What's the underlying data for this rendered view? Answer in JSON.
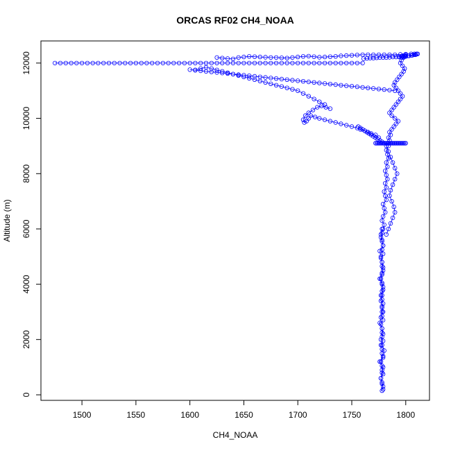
{
  "chart_data": {
    "type": "scatter",
    "title": "ORCAS RF02 CH4_NOAA",
    "xlabel": "CH4_NOAA",
    "ylabel": "Altitude (m)",
    "xlim": [
      1462,
      1822
    ],
    "ylim": [
      -200,
      12800
    ],
    "xticks": [
      1500,
      1550,
      1600,
      1650,
      1700,
      1750,
      1800
    ],
    "yticks": [
      0,
      2000,
      4000,
      6000,
      8000,
      10000,
      12000
    ],
    "grid": false,
    "marker": "open-circle",
    "line": true,
    "color": "#0000ff",
    "series": [
      {
        "x": [
          1778,
          1779,
          1778,
          1777,
          1779,
          1778,
          1778,
          1777,
          1779,
          1778,
          1778,
          1777,
          1779,
          1778,
          1778,
          1778,
          1777,
          1779,
          1778,
          1778,
          1778,
          1779,
          1778,
          1777,
          1778,
          1779,
          1778,
          1777,
          1778,
          1779,
          1778,
          1778,
          1777,
          1779,
          1778,
          1779,
          1778,
          1777,
          1778,
          1779,
          1780,
          1778,
          1779,
          1781,
          1780,
          1779,
          1782,
          1781,
          1780,
          1782,
          1781,
          1783,
          1782,
          1781,
          1783,
          1782,
          1784,
          1783,
          1782,
          1784,
          1783,
          1785,
          1784,
          1786,
          1785,
          1787,
          1789,
          1791,
          1793,
          1790,
          1787,
          1785,
          1787,
          1789,
          1791,
          1793,
          1795,
          1797,
          1795,
          1793,
          1791,
          1789,
          1790,
          1792,
          1794,
          1796,
          1798,
          1799,
          1797,
          1795,
          1796,
          1798,
          1799,
          1800,
          1799,
          1797,
          1796,
          1794,
          1796,
          1798,
          1800,
          1802,
          1805,
          1808,
          1810,
          1811,
          1809,
          1806,
          1803,
          1800,
          1797,
          1794,
          1791,
          1788,
          1785,
          1782,
          1779,
          1776,
          1773,
          1770,
          1767,
          1764,
          1761
        ],
        "y": [
          150,
          300,
          450,
          600,
          750,
          900,
          1050,
          1200,
          1350,
          1500,
          1650,
          1800,
          1950,
          2100,
          2250,
          2400,
          2550,
          2700,
          2850,
          3000,
          3150,
          3300,
          3450,
          3600,
          3750,
          3900,
          4050,
          4200,
          4350,
          4500,
          4650,
          4800,
          4950,
          5100,
          5250,
          5400,
          5550,
          5700,
          5850,
          6000,
          6150,
          6300,
          6450,
          6600,
          6750,
          6900,
          7050,
          7200,
          7350,
          7500,
          7650,
          7800,
          7950,
          8100,
          8250,
          8400,
          8550,
          8700,
          8850,
          9000,
          9100,
          9200,
          9300,
          9400,
          9500,
          9600,
          9700,
          9800,
          9900,
          10000,
          10100,
          10200,
          10300,
          10400,
          10500,
          10600,
          10700,
          10800,
          10900,
          11000,
          11100,
          11200,
          11300,
          11400,
          11500,
          11600,
          11700,
          11800,
          11900,
          12000,
          12100,
          12200,
          12250,
          12300,
          12280,
          12260,
          12240,
          12220,
          12200,
          12220,
          12240,
          12260,
          12280,
          12300,
          12320,
          12330,
          12300,
          12280,
          12260,
          12250,
          12240,
          12230,
          12220,
          12220,
          12210,
          12200,
          12200,
          12200,
          12190,
          12180,
          12180,
          12170,
          12160
        ]
      },
      {
        "x": [
          1779,
          1778,
          1777,
          1778,
          1779,
          1776,
          1779,
          1780,
          1778,
          1777,
          1779,
          1778,
          1776,
          1777,
          1779,
          1778,
          1777,
          1778,
          1779,
          1778,
          1776,
          1778,
          1779,
          1778,
          1777,
          1776,
          1779,
          1778,
          1777,
          1778
        ],
        "y": [
          200,
          400,
          600,
          800,
          1000,
          1200,
          1400,
          1600,
          1800,
          2000,
          2200,
          2400,
          2600,
          2800,
          3000,
          3200,
          3400,
          3600,
          3800,
          4000,
          4200,
          4400,
          4600,
          4800,
          5000,
          5200,
          5400,
          5600,
          5800,
          6000
        ]
      },
      {
        "x": [
          1782,
          1784,
          1786,
          1788,
          1790,
          1789,
          1787,
          1785,
          1786,
          1788,
          1790,
          1792,
          1790,
          1788,
          1786,
          1784,
          1782,
          1780,
          1778,
          1776,
          1774,
          1772,
          1770,
          1768,
          1766,
          1764,
          1762,
          1760,
          1758,
          1756
        ],
        "y": [
          5800,
          6000,
          6200,
          6400,
          6600,
          6800,
          7000,
          7200,
          7400,
          7600,
          7800,
          8000,
          8200,
          8400,
          8600,
          8800,
          9000,
          9100,
          9150,
          9200,
          9250,
          9300,
          9350,
          9400,
          9450,
          9500,
          9550,
          9600,
          9650,
          9700
        ]
      },
      {
        "x": [
          1772,
          1773,
          1774,
          1775,
          1776,
          1777,
          1778,
          1779,
          1780,
          1781,
          1782,
          1783,
          1784,
          1785,
          1786,
          1787,
          1788,
          1789,
          1790,
          1791,
          1792,
          1793,
          1794,
          1795,
          1796,
          1797,
          1798,
          1799,
          1800
        ],
        "y": [
          9100,
          9100,
          9100,
          9100,
          9100,
          9100,
          9100,
          9100,
          9100,
          9100,
          9100,
          9100,
          9100,
          9100,
          9100,
          9100,
          9100,
          9100,
          9100,
          9100,
          9100,
          9100,
          9100,
          9100,
          9100,
          9100,
          9100,
          9100,
          9100
        ]
      },
      {
        "x": [
          1775,
          1772,
          1768,
          1765,
          1762,
          1758,
          1755,
          1750,
          1745,
          1740,
          1735,
          1730,
          1725,
          1720,
          1716,
          1712,
          1710,
          1708,
          1706,
          1705,
          1707,
          1710,
          1714,
          1718,
          1722,
          1726,
          1730
        ],
        "y": [
          9300,
          9400,
          9450,
          9500,
          9550,
          9600,
          9650,
          9700,
          9750,
          9800,
          9850,
          9900,
          9950,
          10000,
          10050,
          10100,
          10000,
          9900,
          9850,
          9950,
          10100,
          10200,
          10300,
          10400,
          10450,
          10400,
          10350
        ]
      },
      {
        "x": [
          1725,
          1720,
          1715,
          1710,
          1705,
          1700,
          1695,
          1690,
          1685,
          1680,
          1675,
          1670,
          1665,
          1660,
          1655,
          1650,
          1645,
          1640,
          1635,
          1630,
          1625,
          1620,
          1615,
          1610,
          1605
        ],
        "y": [
          10500,
          10600,
          10700,
          10800,
          10900,
          11000,
          11050,
          11100,
          11150,
          11200,
          11250,
          11300,
          11350,
          11400,
          11450,
          11500,
          11550,
          11600,
          11650,
          11700,
          11750,
          11800,
          11850,
          11800,
          11750
        ]
      },
      {
        "x": [
          1790,
          1785,
          1780,
          1775,
          1770,
          1765,
          1760,
          1755,
          1750,
          1745,
          1740,
          1735,
          1730,
          1725,
          1720,
          1715,
          1710,
          1705,
          1700,
          1695,
          1690,
          1685,
          1680,
          1675,
          1670,
          1665,
          1660,
          1655,
          1650,
          1645,
          1640,
          1635,
          1630,
          1625,
          1620,
          1615,
          1610,
          1605,
          1600
        ],
        "y": [
          11000,
          11020,
          11040,
          11060,
          11080,
          11100,
          11120,
          11140,
          11160,
          11180,
          11200,
          11220,
          11240,
          11260,
          11280,
          11300,
          11320,
          11340,
          11360,
          11380,
          11400,
          11420,
          11440,
          11460,
          11480,
          11500,
          11520,
          11540,
          11560,
          11580,
          11600,
          11620,
          11640,
          11660,
          11680,
          11700,
          11720,
          11740,
          11760
        ]
      },
      {
        "x": [
          1760,
          1755,
          1750,
          1745,
          1740,
          1735,
          1730,
          1725,
          1720,
          1715,
          1710,
          1705,
          1700,
          1695,
          1690,
          1685,
          1680,
          1675,
          1670,
          1665,
          1660,
          1655,
          1650,
          1645,
          1640,
          1635,
          1630,
          1625,
          1620,
          1615,
          1610,
          1605,
          1600,
          1595,
          1590,
          1585,
          1580,
          1575,
          1570,
          1565,
          1560,
          1555,
          1550,
          1545,
          1540,
          1535,
          1530,
          1525,
          1520,
          1515,
          1510,
          1505,
          1500,
          1495,
          1490,
          1485,
          1480,
          1475
        ],
        "y": [
          12000,
          12000,
          12000,
          12000,
          12000,
          12000,
          12000,
          12000,
          12000,
          12000,
          12000,
          12000,
          12000,
          12000,
          12000,
          12000,
          12000,
          12000,
          12000,
          12000,
          12000,
          12000,
          12000,
          12000,
          12000,
          12000,
          12000,
          12000,
          12000,
          12000,
          12000,
          12000,
          12000,
          12000,
          12000,
          12000,
          12000,
          12000,
          12000,
          12000,
          12000,
          12000,
          12000,
          12000,
          12000,
          12000,
          12000,
          12000,
          12000,
          12000,
          12000,
          12000,
          12000,
          12000,
          12000,
          12000,
          12000,
          12000
        ]
      },
      {
        "x": [
          1625,
          1630,
          1635,
          1640,
          1645,
          1650,
          1655,
          1660,
          1665,
          1670,
          1675,
          1680,
          1685,
          1690,
          1695,
          1700,
          1705,
          1710,
          1715,
          1720,
          1725,
          1730,
          1735,
          1740,
          1745,
          1750,
          1755,
          1760,
          1765,
          1770,
          1775,
          1780,
          1785,
          1790,
          1795,
          1800,
          1805,
          1808,
          1810
        ],
        "y": [
          12200,
          12180,
          12160,
          12150,
          12200,
          12220,
          12240,
          12230,
          12220,
          12210,
          12200,
          12200,
          12190,
          12180,
          12200,
          12220,
          12240,
          12250,
          12230,
          12210,
          12220,
          12230,
          12240,
          12260,
          12270,
          12280,
          12290,
          12300,
          12300,
          12300,
          12300,
          12300,
          12300,
          12300,
          12310,
          12320,
          12330,
          12330,
          12330
        ]
      }
    ]
  }
}
